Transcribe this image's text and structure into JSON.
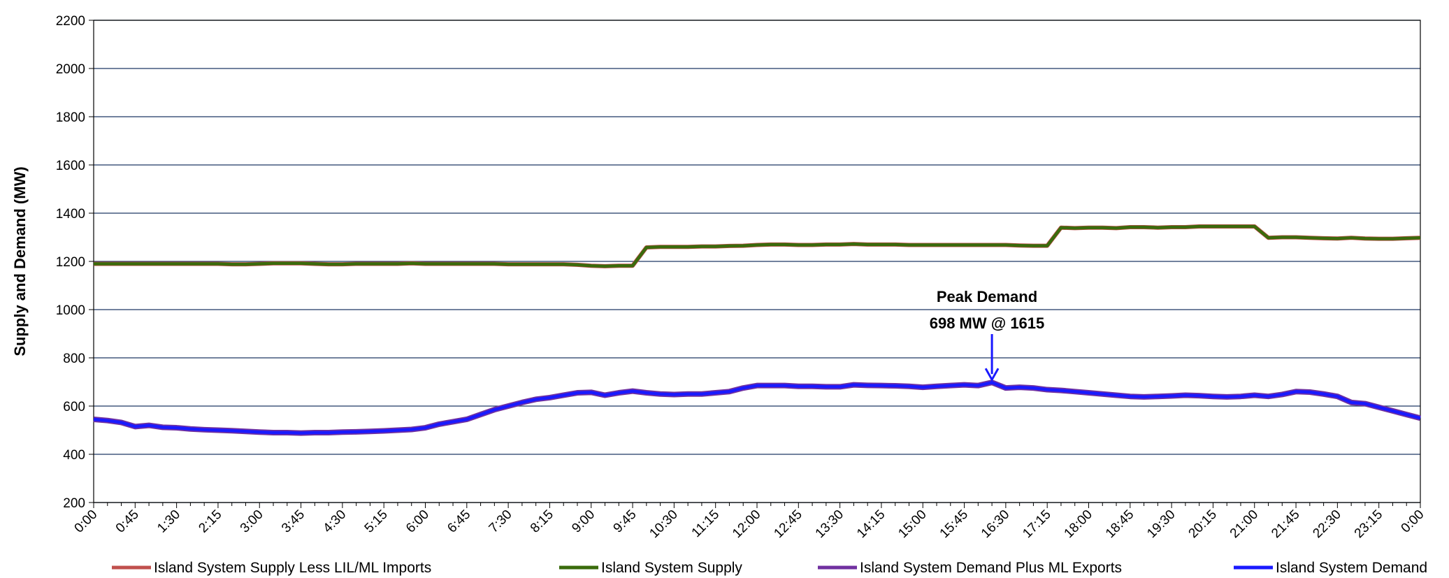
{
  "chart_data": {
    "type": "line",
    "y_label": "Supply and Demand (MW)",
    "annotations": [
      "Peak Demand",
      "698 MW @ 1615"
    ],
    "ylim": [
      200,
      2200
    ],
    "yticks": [
      200,
      400,
      600,
      800,
      1000,
      1200,
      1400,
      1600,
      1800,
      2000,
      2200
    ],
    "grid": true,
    "categories": [
      "0:00",
      null,
      null,
      "0:45",
      null,
      null,
      "1:30",
      null,
      null,
      "2:15",
      null,
      null,
      "3:00",
      null,
      null,
      "3:45",
      null,
      null,
      "4:30",
      null,
      null,
      "5:15",
      null,
      null,
      "6:00",
      null,
      null,
      "6:45",
      null,
      null,
      "7:30",
      null,
      null,
      "8:15",
      null,
      null,
      "9:00",
      null,
      null,
      "9:45",
      null,
      null,
      "10:30",
      null,
      null,
      "11:15",
      null,
      null,
      "12:00",
      null,
      null,
      "12:45",
      null,
      null,
      "13:30",
      null,
      null,
      "14:15",
      null,
      null,
      "15:00",
      null,
      null,
      "15:45",
      null,
      null,
      "16:30",
      null,
      null,
      "17:15",
      null,
      null,
      "18:00",
      null,
      null,
      "18:45",
      null,
      null,
      "19:30",
      null,
      null,
      "20:15",
      null,
      null,
      "21:00",
      null,
      null,
      "21:45",
      null,
      null,
      "22:30",
      null,
      null,
      "23:15",
      null,
      null,
      "0:00"
    ],
    "series": [
      {
        "name": "Island System Supply Less LIL/ML Imports",
        "color": "#c0504d",
        "values": [
          1190,
          1190,
          1190,
          1190,
          1190,
          1190,
          1190,
          1190,
          1190,
          1190,
          1188,
          1188,
          1190,
          1192,
          1192,
          1192,
          1190,
          1188,
          1188,
          1190,
          1190,
          1190,
          1190,
          1192,
          1190,
          1190,
          1190,
          1190,
          1190,
          1190,
          1188,
          1188,
          1188,
          1188,
          1188,
          1186,
          1182,
          1180,
          1182,
          1182,
          1258,
          1260,
          1260,
          1260,
          1262,
          1262,
          1264,
          1265,
          1268,
          1270,
          1270,
          1268,
          1268,
          1270,
          1270,
          1272,
          1270,
          1270,
          1270,
          1268,
          1268,
          1268,
          1268,
          1268,
          1268,
          1268,
          1268,
          1266,
          1265,
          1265,
          1340,
          1338,
          1340,
          1340,
          1338,
          1342,
          1342,
          1340,
          1342,
          1342,
          1345,
          1345,
          1345,
          1345,
          1345,
          1298,
          1300,
          1300,
          1298,
          1296,
          1295,
          1298,
          1295,
          1294,
          1294,
          1296,
          1298
        ]
      },
      {
        "name": "Island System Supply",
        "color": "#3a6b0c",
        "values": [
          1190,
          1190,
          1190,
          1190,
          1190,
          1190,
          1190,
          1190,
          1190,
          1190,
          1188,
          1188,
          1190,
          1192,
          1192,
          1192,
          1190,
          1188,
          1188,
          1190,
          1190,
          1190,
          1190,
          1192,
          1190,
          1190,
          1190,
          1190,
          1190,
          1190,
          1188,
          1188,
          1188,
          1188,
          1188,
          1186,
          1182,
          1180,
          1182,
          1182,
          1258,
          1260,
          1260,
          1260,
          1262,
          1262,
          1264,
          1265,
          1268,
          1270,
          1270,
          1268,
          1268,
          1270,
          1270,
          1272,
          1270,
          1270,
          1270,
          1268,
          1268,
          1268,
          1268,
          1268,
          1268,
          1268,
          1268,
          1266,
          1265,
          1265,
          1340,
          1338,
          1340,
          1340,
          1338,
          1342,
          1342,
          1340,
          1342,
          1342,
          1345,
          1345,
          1345,
          1345,
          1345,
          1298,
          1300,
          1300,
          1298,
          1296,
          1295,
          1298,
          1295,
          1294,
          1294,
          1296,
          1298
        ]
      },
      {
        "name": "Island System Demand Plus ML Exports",
        "color": "#7030a0",
        "values": [
          545,
          540,
          532,
          515,
          520,
          512,
          510,
          505,
          502,
          500,
          498,
          495,
          492,
          490,
          490,
          488,
          490,
          490,
          492,
          493,
          495,
          497,
          500,
          503,
          510,
          525,
          535,
          545,
          565,
          585,
          600,
          615,
          628,
          635,
          645,
          655,
          657,
          645,
          655,
          662,
          655,
          650,
          648,
          650,
          650,
          655,
          660,
          675,
          685,
          685,
          685,
          682,
          682,
          680,
          680,
          688,
          686,
          685,
          684,
          682,
          678,
          682,
          685,
          688,
          685,
          698,
          675,
          678,
          675,
          668,
          665,
          660,
          655,
          650,
          645,
          640,
          638,
          640,
          642,
          645,
          643,
          640,
          638,
          640,
          645,
          640,
          648,
          660,
          658,
          650,
          640,
          615,
          610,
          595,
          580,
          565,
          550
        ]
      },
      {
        "name": "Island System Demand",
        "color": "#1a1aff",
        "values": [
          545,
          540,
          532,
          515,
          520,
          512,
          510,
          505,
          502,
          500,
          498,
          495,
          492,
          490,
          490,
          488,
          490,
          490,
          492,
          493,
          495,
          497,
          500,
          503,
          510,
          525,
          535,
          545,
          565,
          585,
          600,
          615,
          628,
          635,
          645,
          655,
          657,
          645,
          655,
          662,
          655,
          650,
          648,
          650,
          650,
          655,
          660,
          675,
          685,
          685,
          685,
          682,
          682,
          680,
          680,
          688,
          686,
          685,
          684,
          682,
          678,
          682,
          685,
          688,
          685,
          698,
          675,
          678,
          675,
          668,
          665,
          660,
          655,
          650,
          645,
          640,
          638,
          640,
          642,
          645,
          643,
          640,
          638,
          640,
          645,
          640,
          648,
          660,
          658,
          650,
          640,
          615,
          610,
          595,
          580,
          565,
          550
        ]
      }
    ]
  }
}
